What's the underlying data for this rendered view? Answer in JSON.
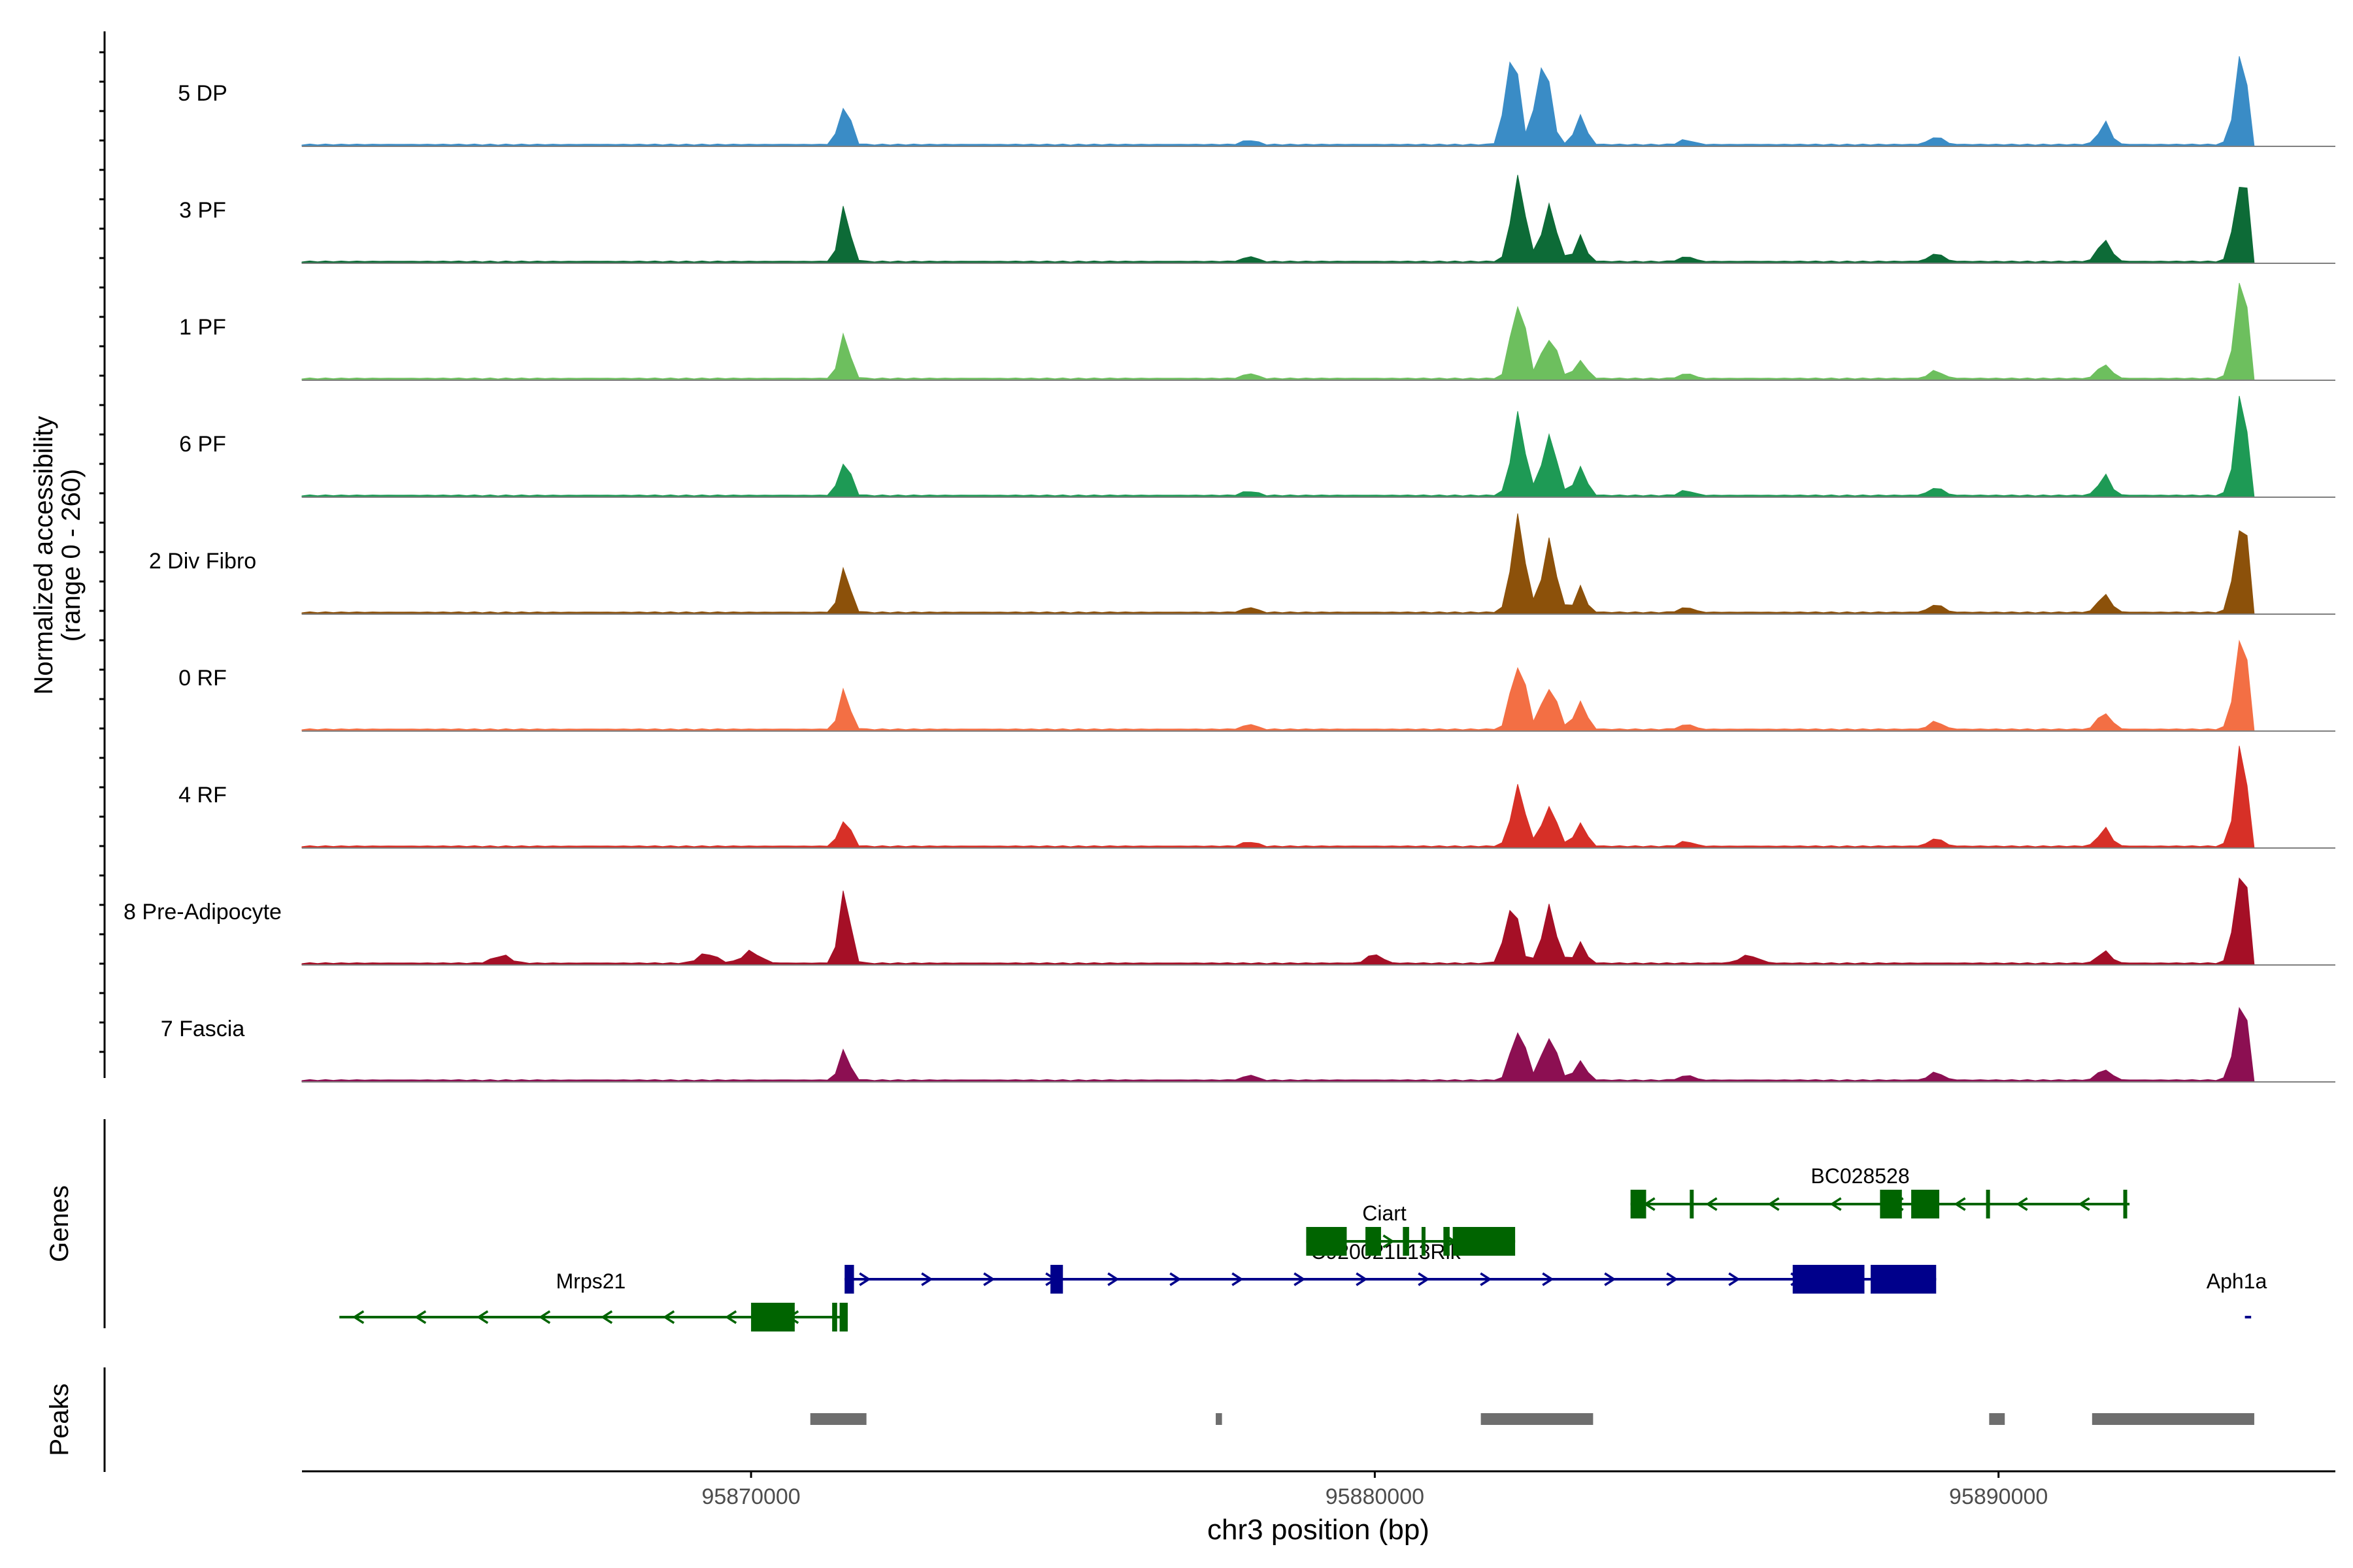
{
  "chart_data": {
    "type": "area",
    "ylabel_line1": "Normalized accessibility",
    "ylabel_line2": "(range 0 - 260)",
    "genes_label": "Genes",
    "peaks_label": "Peaks",
    "xlabel": "chr3 position (bp)",
    "xlim": [
      95862800,
      95895400
    ],
    "x_ticks": [
      95870000,
      95880000,
      95890000
    ],
    "x_tick_labels": [
      "95870000",
      "95880000",
      "95890000"
    ],
    "track_order_top_to_bottom": true,
    "series": [
      {
        "name": "5 DP",
        "color": "#3a8cc6",
        "peaks": [
          [
            95871500,
            0.45,
            120
          ],
          [
            95882200,
            1.0,
            140
          ],
          [
            95882700,
            0.85,
            160
          ],
          [
            95883300,
            0.3,
            120
          ],
          [
            95891700,
            0.22,
            140
          ],
          [
            95893900,
            0.9,
            150
          ],
          [
            95889000,
            0.08,
            150
          ],
          [
            95885000,
            0.05,
            150
          ],
          [
            95878000,
            0.05,
            150
          ]
        ]
      },
      {
        "name": "3 PF",
        "color": "#0d6b37",
        "peaks": [
          [
            95871500,
            0.55,
            120
          ],
          [
            95882300,
            0.85,
            150
          ],
          [
            95882800,
            0.55,
            160
          ],
          [
            95883300,
            0.25,
            120
          ],
          [
            95891700,
            0.22,
            140
          ],
          [
            95893900,
            0.95,
            150
          ],
          [
            95889000,
            0.08,
            150
          ],
          [
            95885000,
            0.05,
            150
          ],
          [
            95878000,
            0.05,
            150
          ]
        ]
      },
      {
        "name": "1 PF",
        "color": "#6dbf5e",
        "peaks": [
          [
            95871500,
            0.45,
            120
          ],
          [
            95882300,
            0.85,
            150
          ],
          [
            95882800,
            0.45,
            160
          ],
          [
            95883300,
            0.2,
            120
          ],
          [
            95891700,
            0.15,
            140
          ],
          [
            95893900,
            1.0,
            150
          ],
          [
            95889000,
            0.08,
            150
          ],
          [
            95885000,
            0.05,
            150
          ],
          [
            95878000,
            0.05,
            150
          ]
        ]
      },
      {
        "name": "6 PF",
        "color": "#1e9a55",
        "peaks": [
          [
            95871500,
            0.4,
            120
          ],
          [
            95882300,
            0.8,
            150
          ],
          [
            95882800,
            0.6,
            160
          ],
          [
            95883300,
            0.3,
            120
          ],
          [
            95891700,
            0.2,
            140
          ],
          [
            95893900,
            1.0,
            150
          ],
          [
            95889000,
            0.08,
            150
          ],
          [
            95885000,
            0.05,
            150
          ],
          [
            95878000,
            0.05,
            150
          ]
        ]
      },
      {
        "name": "2 Div Fibro",
        "color": "#8c510a",
        "peaks": [
          [
            95871500,
            0.45,
            120
          ],
          [
            95882300,
            0.95,
            150
          ],
          [
            95882800,
            0.7,
            160
          ],
          [
            95883300,
            0.25,
            120
          ],
          [
            95891700,
            0.18,
            140
          ],
          [
            95893900,
            1.0,
            150
          ],
          [
            95889000,
            0.08,
            150
          ],
          [
            95885000,
            0.05,
            150
          ],
          [
            95878000,
            0.05,
            150
          ]
        ]
      },
      {
        "name": "0 RF",
        "color": "#f36f44",
        "peaks": [
          [
            95871500,
            0.4,
            120
          ],
          [
            95882300,
            0.75,
            150
          ],
          [
            95882800,
            0.45,
            160
          ],
          [
            95883300,
            0.3,
            120
          ],
          [
            95891700,
            0.18,
            140
          ],
          [
            95893900,
            0.95,
            150
          ],
          [
            95889000,
            0.08,
            150
          ],
          [
            95885000,
            0.05,
            150
          ],
          [
            95878000,
            0.05,
            150
          ]
        ]
      },
      {
        "name": "4 RF",
        "color": "#d73027",
        "peaks": [
          [
            95871500,
            0.3,
            120
          ],
          [
            95882300,
            0.6,
            150
          ],
          [
            95882800,
            0.4,
            160
          ],
          [
            95883300,
            0.25,
            120
          ],
          [
            95891700,
            0.18,
            140
          ],
          [
            95893900,
            1.0,
            150
          ],
          [
            95889000,
            0.08,
            150
          ],
          [
            95885000,
            0.05,
            150
          ],
          [
            95878000,
            0.05,
            150
          ]
        ]
      },
      {
        "name": "8 Pre-Adipocyte",
        "color": "#a50f26",
        "peaks": [
          [
            95871500,
            0.75,
            120
          ],
          [
            95882200,
            0.6,
            150
          ],
          [
            95882800,
            0.55,
            160
          ],
          [
            95883300,
            0.2,
            120
          ],
          [
            95891700,
            0.12,
            140
          ],
          [
            95893900,
            1.0,
            150
          ],
          [
            95870000,
            0.12,
            200
          ],
          [
            95869300,
            0.1,
            200
          ],
          [
            95880000,
            0.1,
            150
          ],
          [
            95866000,
            0.08,
            200
          ],
          [
            95886000,
            0.08,
            200
          ]
        ]
      },
      {
        "name": "7 Fascia",
        "color": "#8c0f52",
        "peaks": [
          [
            95871500,
            0.3,
            120
          ],
          [
            95882300,
            0.55,
            150
          ],
          [
            95882800,
            0.45,
            160
          ],
          [
            95883300,
            0.2,
            120
          ],
          [
            95891700,
            0.12,
            140
          ],
          [
            95893900,
            0.8,
            150
          ],
          [
            95889000,
            0.08,
            150
          ],
          [
            95885000,
            0.05,
            150
          ],
          [
            95878000,
            0.05,
            150
          ]
        ]
      }
    ],
    "genes": [
      {
        "name": "Mrps21",
        "strand": "-",
        "color": "#006400",
        "row": 3,
        "start": 95863400,
        "end": 95871550,
        "exons": [
          [
            95870000,
            95870700
          ],
          [
            95871300,
            95871380
          ],
          [
            95871420,
            95871550
          ]
        ]
      },
      {
        "name": "C920021L13Rik",
        "strand": "+",
        "color": "#00008b",
        "row": 2,
        "start": 95871500,
        "end": 95889000,
        "exons": [
          [
            95871500,
            95871650
          ],
          [
            95874800,
            95875000
          ],
          [
            95886700,
            95887850
          ],
          [
            95887950,
            95889000
          ]
        ]
      },
      {
        "name": "Ciart",
        "strand": "+",
        "color": "#006400",
        "row": 1,
        "start": 95878900,
        "end": 95882250,
        "exons": [
          [
            95878900,
            95879550
          ],
          [
            95879850,
            95880100
          ],
          [
            95880450,
            95880550
          ],
          [
            95880750,
            95880800
          ],
          [
            95881100,
            95881200
          ],
          [
            95881250,
            95882250
          ]
        ]
      },
      {
        "name": "BC028528",
        "strand": "-",
        "color": "#006400",
        "row": 0,
        "start": 95884100,
        "end": 95892100,
        "exons": [
          [
            95884100,
            95884350
          ],
          [
            95885050,
            95885100
          ],
          [
            95888100,
            95888450
          ],
          [
            95888600,
            95889050
          ],
          [
            95889800,
            95889850
          ],
          [
            95892000,
            95892050
          ]
        ]
      },
      {
        "name": "Aph1a",
        "strand": "+",
        "color": "#00008b",
        "row": 3,
        "start": 95893950,
        "end": 95894050,
        "exons": []
      }
    ],
    "peaks": [
      [
        95870950,
        95871850
      ],
      [
        95877450,
        95877550
      ],
      [
        95881700,
        95883500
      ],
      [
        95889850,
        95890100
      ],
      [
        95891500,
        95894100
      ]
    ]
  }
}
